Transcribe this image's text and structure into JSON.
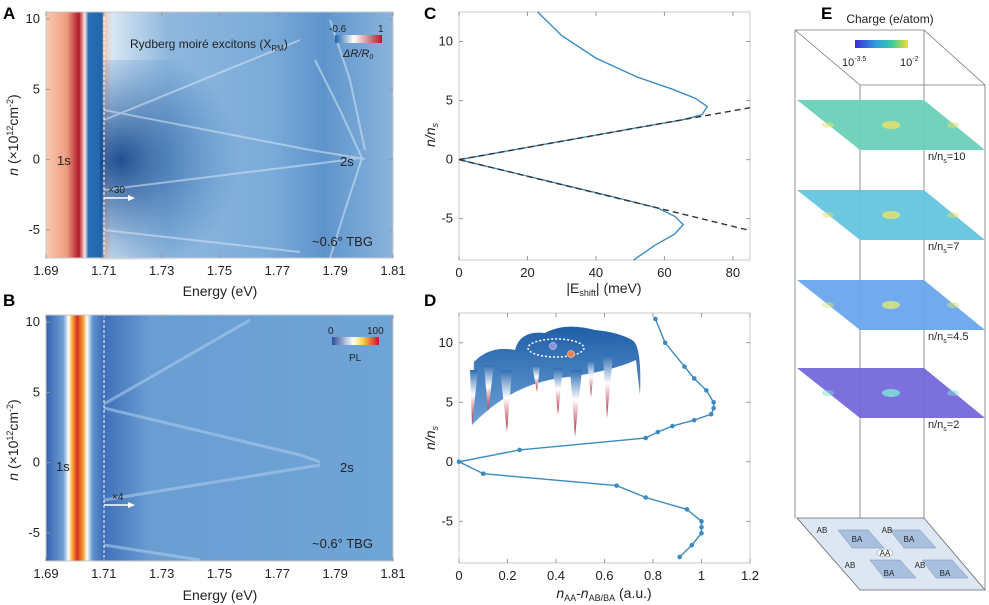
{
  "panel_labels": {
    "A": "A",
    "B": "B",
    "C": "C",
    "D": "D",
    "E": "E"
  },
  "panel_A": {
    "title": "Rydberg moiré excitons (X",
    "title_sub": "RM",
    "title_end": ")",
    "colorbar_min": "-0.6",
    "colorbar_max": "1",
    "colorbar_label": "ΔR/R",
    "colorbar_label_sub": "0",
    "colorbar_colors": [
      "#2166ac",
      "#ffffff",
      "#b2182b"
    ],
    "label_1s": "1s",
    "label_2s": "2s",
    "scale_note": "×30",
    "sample": "~0.6° TBG",
    "xlabel": "Energy (eV)",
    "ylabel": {
      "var": "n",
      "pre": " (×10",
      "exp": "12",
      "mid": "cm",
      "exp2": "-2",
      "end": ")"
    },
    "xticks": [
      "1.69",
      "1.71",
      "1.73",
      "1.75",
      "1.77",
      "1.79",
      "1.81"
    ],
    "yticks": [
      "10",
      "5",
      "0",
      "-5"
    ],
    "xlim": [
      1.69,
      1.81
    ],
    "ylim": [
      -7,
      10.5
    ]
  },
  "panel_B": {
    "colorbar_min": "0",
    "colorbar_max": "100",
    "colorbar_label": "PL",
    "colorbar_colors": [
      "#2c4f9e",
      "#ffffff",
      "#f9d648",
      "#c8102e"
    ],
    "label_1s": "1s",
    "label_2s": "2s",
    "scale_note": "×4",
    "sample": "~0.6° TBG",
    "xlabel": "Energy (eV)",
    "ylabel": {
      "var": "n",
      "pre": " (×10",
      "exp": "12",
      "mid": "cm",
      "exp2": "-2",
      "end": ")"
    },
    "xticks": [
      "1.69",
      "1.71",
      "1.73",
      "1.75",
      "1.77",
      "1.79",
      "1.81"
    ],
    "yticks": [
      "10",
      "5",
      "0",
      "-5"
    ],
    "xlim": [
      1.69,
      1.81
    ],
    "ylim": [
      -7,
      10.5
    ]
  },
  "chart_data": [
    {
      "panel": "C",
      "type": "line",
      "xlabel": "|E_shift| (meV)",
      "xlabel_parts": {
        "pre": "|E",
        "sub": "shift",
        "end": "| (meV)"
      },
      "ylabel_parts": {
        "var": "n/n",
        "sub": "s"
      },
      "xlim": [
        0,
        85
      ],
      "ylim": [
        -8.5,
        12.5
      ],
      "xticks": [
        "0",
        "20",
        "40",
        "60",
        "80"
      ],
      "yticks": [
        "10",
        "5",
        "0",
        "-5"
      ],
      "series": [
        {
          "style": "solid",
          "color": "#3b8bc2",
          "points": [
            [
              23,
              12.5
            ],
            [
              30,
              10.5
            ],
            [
              40,
              8.6
            ],
            [
              52,
              7
            ],
            [
              62,
              6
            ],
            [
              69,
              5.2
            ],
            [
              72.5,
              4.5
            ],
            [
              71,
              3.8
            ],
            [
              65,
              3.35
            ],
            [
              50,
              2.6
            ],
            [
              30,
              1.56
            ],
            [
              15,
              0.78
            ],
            [
              5,
              0.25
            ],
            [
              0,
              0
            ],
            [
              5,
              -0.35
            ],
            [
              15,
              -1.05
            ],
            [
              30,
              -2.1
            ],
            [
              45,
              -3.15
            ],
            [
              58,
              -4.1
            ],
            [
              63,
              -4.8
            ],
            [
              65.5,
              -5.5
            ],
            [
              63,
              -6.3
            ],
            [
              57,
              -7.3
            ],
            [
              51,
              -8.5
            ]
          ]
        },
        {
          "style": "dashed",
          "color": "#333333",
          "points": [
            [
              0,
              0
            ],
            [
              85,
              4.4
            ]
          ]
        },
        {
          "style": "dashed",
          "color": "#333333",
          "points": [
            [
              0,
              0
            ],
            [
              85,
              -6.0
            ]
          ]
        }
      ]
    },
    {
      "panel": "D",
      "type": "line",
      "xlabel_parts": {
        "v1": "n",
        "s1": "AA",
        "mid": "-",
        "v2": "n",
        "s2": "AB/BA",
        "end": " (a.u.)"
      },
      "ylabel_parts": {
        "var": "n/n",
        "sub": "s"
      },
      "xlim": [
        0,
        1.2
      ],
      "ylim": [
        -8.5,
        12.5
      ],
      "xticks": [
        "0",
        "0.2",
        "0.4",
        "0.6",
        "0.8",
        "1",
        "1.2"
      ],
      "yticks": [
        "10",
        "5",
        "0",
        "-5"
      ],
      "series": [
        {
          "style": "solid-markers",
          "color": "#3b8bc2",
          "points": [
            [
              0.81,
              12
            ],
            [
              0.85,
              10
            ],
            [
              0.93,
              8
            ],
            [
              0.97,
              7
            ],
            [
              1.02,
              6
            ],
            [
              1.05,
              5
            ],
            [
              1.05,
              4.5
            ],
            [
              1.04,
              4
            ],
            [
              0.97,
              3.5
            ],
            [
              0.88,
              3
            ],
            [
              0.82,
              2.5
            ],
            [
              0.77,
              2
            ],
            [
              0.25,
              1
            ],
            [
              0,
              0
            ],
            [
              0.1,
              -1
            ],
            [
              0.65,
              -2
            ],
            [
              0.77,
              -3
            ],
            [
              0.94,
              -4
            ],
            [
              1.0,
              -5
            ],
            [
              1.0,
              -5.5
            ],
            [
              1.0,
              -6
            ],
            [
              0.96,
              -7
            ],
            [
              0.91,
              -8
            ]
          ]
        }
      ]
    }
  ],
  "panel_E": {
    "title": "Charge (e/atom)",
    "colorbar_min": {
      "base": "10",
      "exp": "-3.5"
    },
    "colorbar_max": {
      "base": "10",
      "exp": "-2"
    },
    "colorbar_colors": [
      "#3b2bd8",
      "#2f9fe0",
      "#3cc8a0",
      "#f2e030"
    ],
    "layers": [
      {
        "label_pre": "n/n",
        "label_sub": "s",
        "label_val": "=10",
        "color": "#6cd0b8",
        "spot": "#e6e06a"
      },
      {
        "label_pre": "n/n",
        "label_sub": "s",
        "label_val": "=7",
        "color": "#64c4de",
        "spot": "#e2e070"
      },
      {
        "label_pre": "n/n",
        "label_sub": "s",
        "label_val": "=4.5",
        "color": "#6aa6ec",
        "spot": "#d8e47c"
      },
      {
        "label_pre": "n/n",
        "label_sub": "s",
        "label_val": "=2",
        "color": "#7468da",
        "spot": "#7ee0d8"
      }
    ],
    "base_regions": [
      "AB",
      "BA",
      "AB",
      "BA",
      "AA",
      "AB",
      "BA",
      "AB",
      "BA"
    ]
  }
}
